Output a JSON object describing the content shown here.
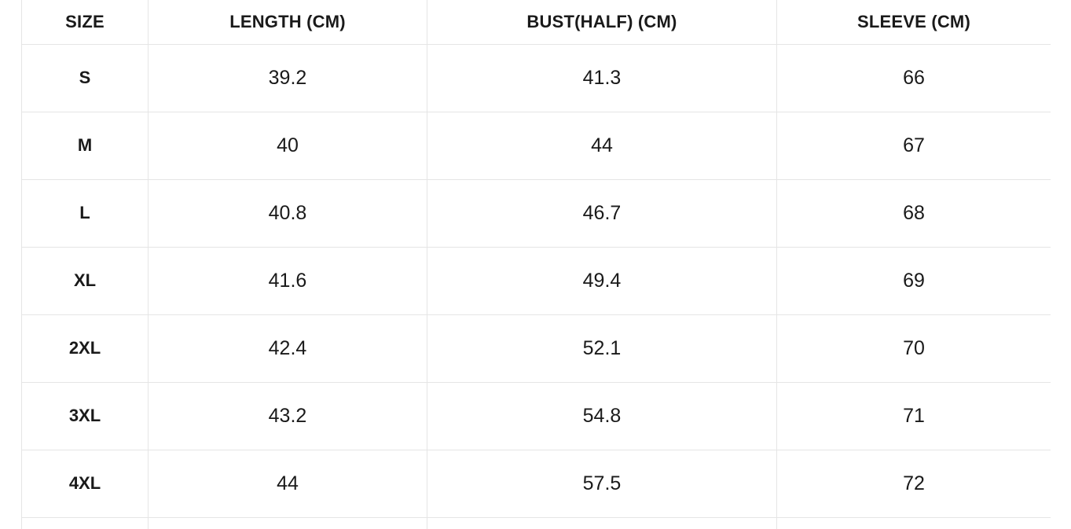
{
  "table": {
    "name": "garment-size-chart",
    "columns": [
      {
        "key": "size",
        "label": "SIZE"
      },
      {
        "key": "length",
        "label": "LENGTH (CM)"
      },
      {
        "key": "bust",
        "label": "BUST(HALF) (CM)"
      },
      {
        "key": "sleeve",
        "label": "SLEEVE (CM)"
      }
    ],
    "rows": [
      {
        "size": "S",
        "length": "39.2",
        "bust": "41.3",
        "sleeve": "66"
      },
      {
        "size": "M",
        "length": "40",
        "bust": "44",
        "sleeve": "67"
      },
      {
        "size": "L",
        "length": "40.8",
        "bust": "46.7",
        "sleeve": "68"
      },
      {
        "size": "XL",
        "length": "41.6",
        "bust": "49.4",
        "sleeve": "69"
      },
      {
        "size": "2XL",
        "length": "42.4",
        "bust": "52.1",
        "sleeve": "70"
      },
      {
        "size": "3XL",
        "length": "43.2",
        "bust": "54.8",
        "sleeve": "71"
      },
      {
        "size": "4XL",
        "length": "44",
        "bust": "57.5",
        "sleeve": "72"
      }
    ],
    "colors": {
      "text": "#1a1a1a",
      "border": "#e5e5e5",
      "background": "#ffffff"
    }
  }
}
